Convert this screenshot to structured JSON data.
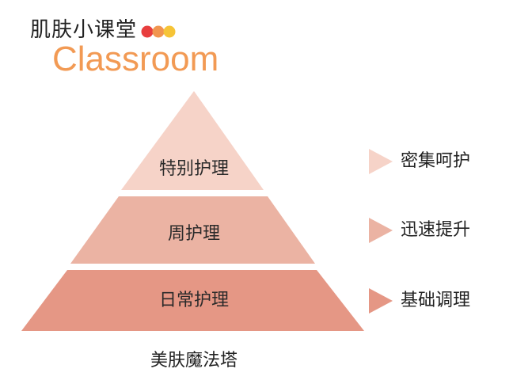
{
  "logo": {
    "title": "肌肤小课堂",
    "subtitle": "Classroom",
    "dot_colors": [
      "#e83e3e",
      "#f1954f",
      "#f6c437"
    ]
  },
  "pyramid": {
    "tiers": [
      {
        "label": "特别护理",
        "color": "#f6d3c8"
      },
      {
        "label": "周护理",
        "color": "#ebb3a3"
      },
      {
        "label": "日常护理",
        "color": "#e59785"
      }
    ],
    "caption": "美肤魔法塔"
  },
  "legend": {
    "items": [
      {
        "label": "密集呵护",
        "color": "#f6d3c8"
      },
      {
        "label": "迅速提升",
        "color": "#ebb3a3"
      },
      {
        "label": "基础调理",
        "color": "#e59785"
      }
    ]
  }
}
